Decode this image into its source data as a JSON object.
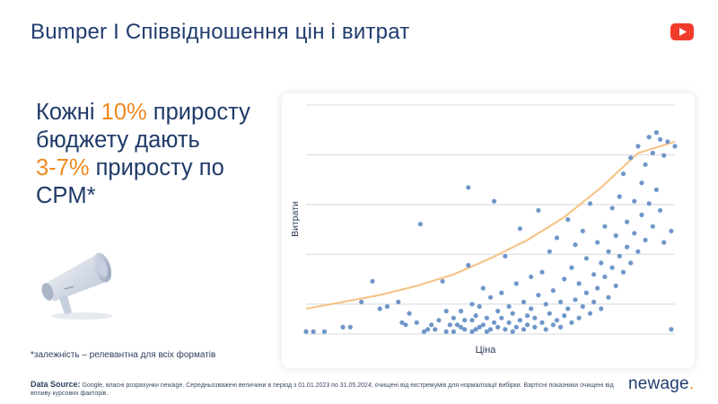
{
  "header": {
    "title": "Bumper I Співвідношення цін і витрат",
    "platform_icon": "youtube-icon"
  },
  "headline": {
    "line1_prefix": "Кожні ",
    "line1_accent": "10%",
    "line1_suffix": " приросту",
    "line2": "бюджету дають",
    "line3_accent": "3-7%",
    "line3_suffix": " приросту по",
    "line4": "CPM*"
  },
  "decoration": {
    "icon": "megaphone-icon"
  },
  "footnote": "*залежність – релевантна для всіх форматів",
  "source": {
    "label": "Data Source:",
    "text": " Google, власні розрахунки newage.  Середньозважені  величини в період з 01.01.2023 по 31.05.2024, очищені від екстремумів для нормалізації вибірки. Вартісні показники очищені від впливу курсових факторів."
  },
  "logo": {
    "main": "newage",
    "dot": "."
  },
  "colors": {
    "title": "#213c6e",
    "accent": "#f08a1c",
    "points": "#6f96c8",
    "trend": "#f6c48a",
    "grid": "#d4d8de"
  },
  "chart_data": {
    "type": "scatter",
    "xlabel": "Ціна",
    "ylabel": "Витрати",
    "xlim": [
      0,
      100
    ],
    "ylim": [
      0,
      100
    ],
    "grid": "horizontal",
    "trend": {
      "type": "exponential",
      "x": [
        0,
        10,
        20,
        30,
        40,
        50,
        60,
        70,
        80,
        90,
        100
      ],
      "y": [
        11,
        14,
        17,
        21,
        26,
        33,
        41,
        51,
        64,
        79,
        84
      ]
    },
    "points": [
      [
        0,
        1
      ],
      [
        2,
        1
      ],
      [
        5,
        1
      ],
      [
        10,
        3
      ],
      [
        12,
        3
      ],
      [
        15,
        14
      ],
      [
        18,
        23
      ],
      [
        20,
        11
      ],
      [
        22,
        12
      ],
      [
        25,
        14
      ],
      [
        26,
        5
      ],
      [
        27,
        4
      ],
      [
        28,
        9
      ],
      [
        30,
        5
      ],
      [
        31,
        48
      ],
      [
        32,
        1
      ],
      [
        33,
        2
      ],
      [
        34,
        4
      ],
      [
        35,
        2
      ],
      [
        36,
        6
      ],
      [
        37,
        23
      ],
      [
        38,
        1
      ],
      [
        38,
        10
      ],
      [
        39,
        4
      ],
      [
        40,
        1
      ],
      [
        40,
        7
      ],
      [
        41,
        4
      ],
      [
        42,
        3
      ],
      [
        42,
        10
      ],
      [
        43,
        2
      ],
      [
        43,
        6
      ],
      [
        44,
        30
      ],
      [
        44,
        64
      ],
      [
        45,
        1
      ],
      [
        45,
        6
      ],
      [
        45,
        13
      ],
      [
        46,
        2
      ],
      [
        46,
        8
      ],
      [
        47,
        3
      ],
      [
        47,
        12
      ],
      [
        48,
        4
      ],
      [
        48,
        20
      ],
      [
        49,
        1
      ],
      [
        49,
        7
      ],
      [
        50,
        16
      ],
      [
        50,
        2
      ],
      [
        51,
        5
      ],
      [
        51,
        58
      ],
      [
        52,
        10
      ],
      [
        52,
        3
      ],
      [
        53,
        7
      ],
      [
        53,
        18
      ],
      [
        54,
        2
      ],
      [
        54,
        34
      ],
      [
        55,
        5
      ],
      [
        55,
        12
      ],
      [
        56,
        1
      ],
      [
        56,
        9
      ],
      [
        57,
        22
      ],
      [
        57,
        3
      ],
      [
        58,
        6
      ],
      [
        58,
        46
      ],
      [
        59,
        2
      ],
      [
        59,
        14
      ],
      [
        60,
        8
      ],
      [
        60,
        4
      ],
      [
        61,
        25
      ],
      [
        61,
        11
      ],
      [
        62,
        3
      ],
      [
        62,
        7
      ],
      [
        63,
        17
      ],
      [
        63,
        54
      ],
      [
        64,
        5
      ],
      [
        64,
        27
      ],
      [
        65,
        2
      ],
      [
        65,
        13
      ],
      [
        66,
        9
      ],
      [
        66,
        36
      ],
      [
        67,
        4
      ],
      [
        67,
        19
      ],
      [
        68,
        6
      ],
      [
        68,
        42
      ],
      [
        69,
        14
      ],
      [
        69,
        3
      ],
      [
        70,
        24
      ],
      [
        70,
        8
      ],
      [
        71,
        11
      ],
      [
        71,
        50
      ],
      [
        72,
        5
      ],
      [
        72,
        29
      ],
      [
        73,
        15
      ],
      [
        73,
        39
      ],
      [
        74,
        7
      ],
      [
        74,
        22
      ],
      [
        75,
        12
      ],
      [
        75,
        45
      ],
      [
        76,
        18
      ],
      [
        76,
        33
      ],
      [
        77,
        9
      ],
      [
        77,
        57
      ],
      [
        78,
        26
      ],
      [
        78,
        14
      ],
      [
        79,
        40
      ],
      [
        79,
        20
      ],
      [
        80,
        31
      ],
      [
        80,
        11
      ],
      [
        81,
        47
      ],
      [
        81,
        25
      ],
      [
        82,
        36
      ],
      [
        82,
        16
      ],
      [
        83,
        55
      ],
      [
        83,
        29
      ],
      [
        84,
        43
      ],
      [
        84,
        21
      ],
      [
        85,
        60
      ],
      [
        85,
        34
      ],
      [
        86,
        70
      ],
      [
        86,
        27
      ],
      [
        87,
        49
      ],
      [
        87,
        38
      ],
      [
        88,
        77
      ],
      [
        88,
        31
      ],
      [
        89,
        58
      ],
      [
        89,
        44
      ],
      [
        90,
        82
      ],
      [
        90,
        36
      ],
      [
        91,
        66
      ],
      [
        91,
        52
      ],
      [
        92,
        74
      ],
      [
        92,
        41
      ],
      [
        93,
        86
      ],
      [
        93,
        57
      ],
      [
        94,
        79
      ],
      [
        94,
        47
      ],
      [
        95,
        88
      ],
      [
        95,
        63
      ],
      [
        96,
        85
      ],
      [
        96,
        54
      ],
      [
        97,
        78
      ],
      [
        97,
        40
      ],
      [
        98,
        84
      ],
      [
        99,
        45
      ],
      [
        99,
        2
      ],
      [
        100,
        82
      ]
    ]
  }
}
